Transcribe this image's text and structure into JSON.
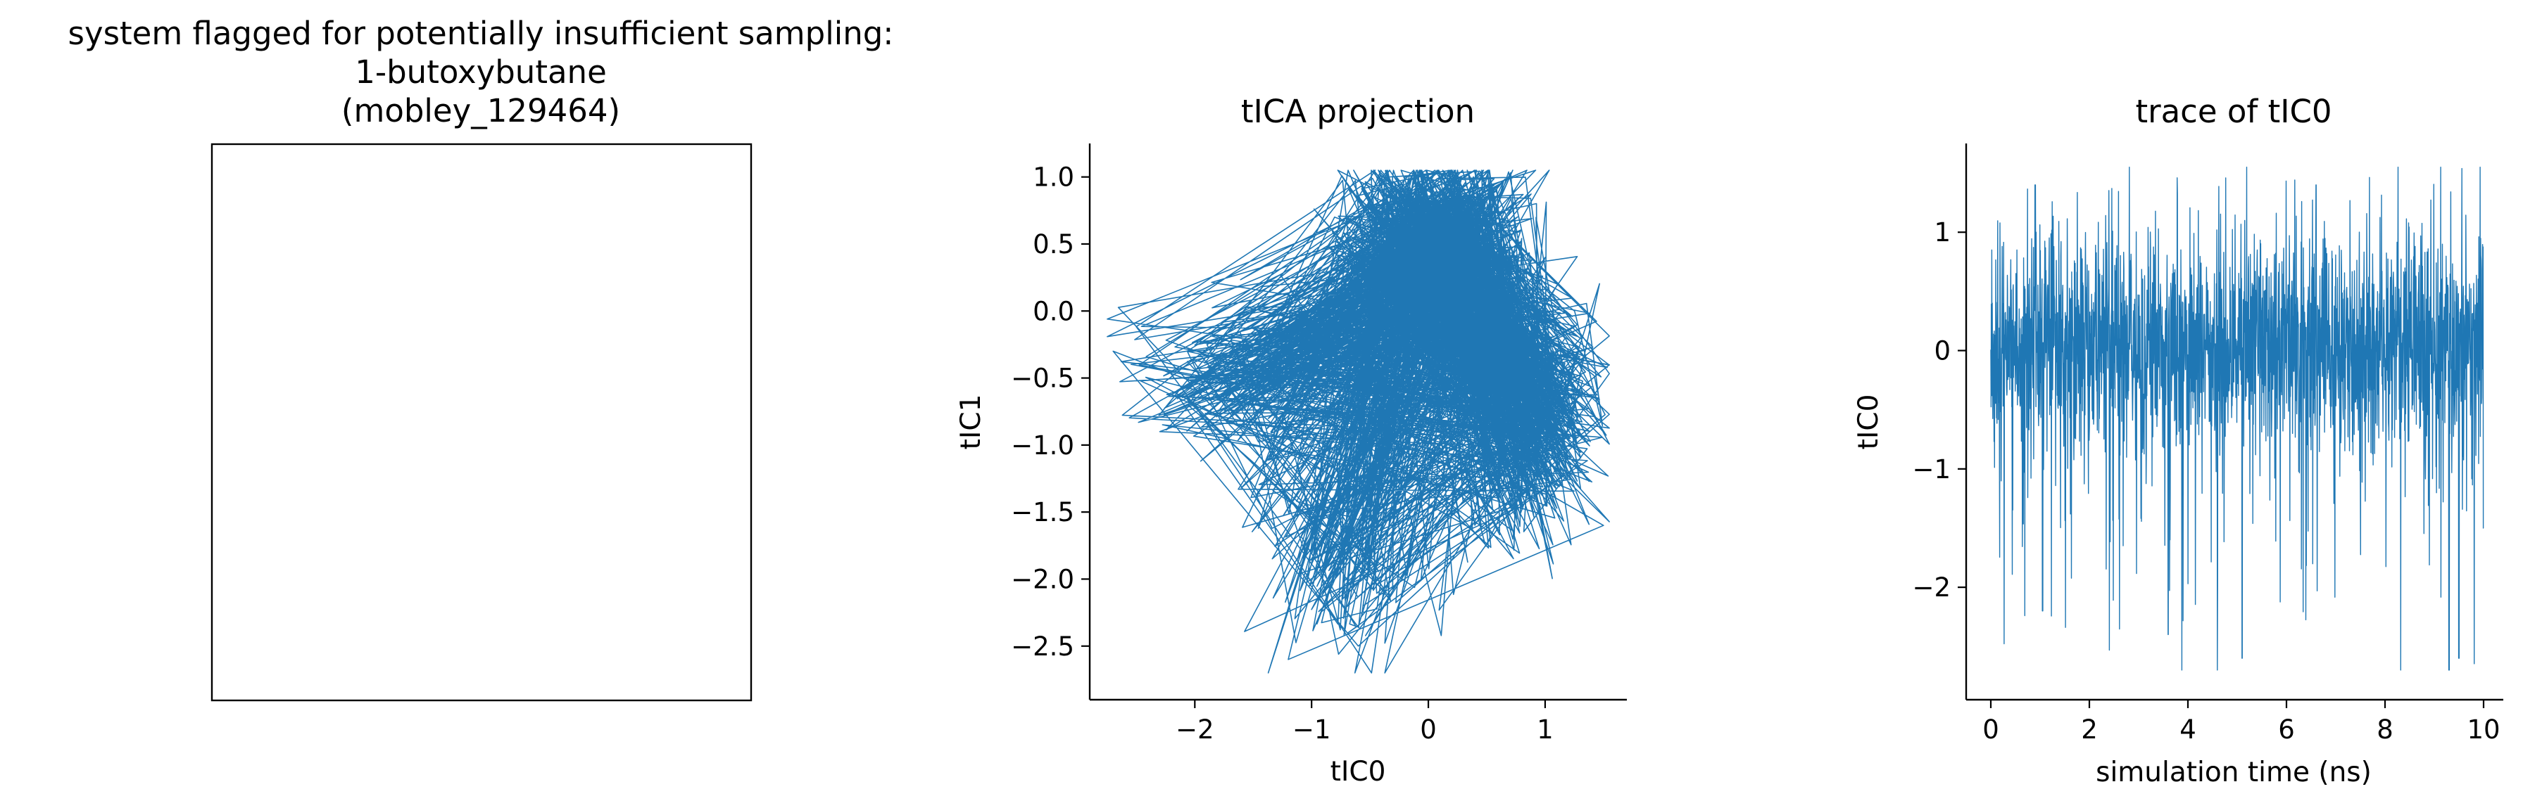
{
  "figure": {
    "suptitle_lines": [
      "system flagged for potentially insufficient sampling:",
      "1-butoxybutane",
      "(mobley_129464)"
    ]
  },
  "colors": {
    "series": "#1f77b4",
    "axes": "#000000"
  },
  "chart_data": [
    {
      "type": "image-panel",
      "title": "",
      "content": "empty"
    },
    {
      "type": "line",
      "title": "tICA projection",
      "xlabel": "tIC0",
      "ylabel": "tIC1",
      "xlim": [
        -2.9,
        1.7
      ],
      "ylim": [
        -2.9,
        1.25
      ],
      "xticks": [
        -2,
        -1,
        0,
        1
      ],
      "xtick_labels": [
        "−2",
        "−1",
        "0",
        "1"
      ],
      "yticks": [
        1.0,
        0.5,
        0.0,
        -0.5,
        -1.0,
        -1.5,
        -2.0,
        -2.5
      ],
      "ytick_labels": [
        "1.0",
        "0.5",
        "0.0",
        "−0.5",
        "−1.0",
        "−1.5",
        "−2.0",
        "−2.5"
      ],
      "series": [
        {
          "n_points": 2200,
          "description_points": {
            "x": [
              0.0,
              0.3,
              -0.4,
              0.6,
              -1.8,
              -2.7,
              -0.6,
              0.9,
              1.5,
              -1.2,
              -0.2,
              0.2,
              -0.8,
              1.0,
              0.4,
              -2.3,
              -0.1,
              0.7
            ],
            "y": [
              0.6,
              0.9,
              0.3,
              -0.4,
              -0.6,
              -0.3,
              -2.5,
              -1.3,
              -1.6,
              -2.6,
              1.0,
              1.05,
              -2.0,
              0.4,
              -1.0,
              -0.9,
              -0.2,
              0.2
            ]
          }
        }
      ],
      "grid": false
    },
    {
      "type": "line",
      "title": "trace of tIC0",
      "xlabel": "simulation time (ns)",
      "ylabel": "tIC0",
      "xlim": [
        -0.5,
        10.4
      ],
      "ylim": [
        -2.95,
        1.75
      ],
      "xticks": [
        0,
        2,
        4,
        6,
        8,
        10
      ],
      "xtick_labels": [
        "0",
        "2",
        "4",
        "6",
        "8",
        "10"
      ],
      "yticks": [
        1,
        0,
        -1,
        -2
      ],
      "ytick_labels": [
        "1",
        "0",
        "−1",
        "−2"
      ],
      "series": [
        {
          "n_points": 2000,
          "x_range": [
            0,
            10
          ],
          "y_range": [
            -2.7,
            1.55
          ],
          "notable_extrema": {
            "x": [
              0.9,
              1.05,
              3.6,
              5.1,
              6.6,
              9.3,
              9.5,
              10.0
            ],
            "y": [
              1.4,
              -2.2,
              -2.4,
              -2.6,
              1.4,
              -2.7,
              -2.6,
              -1.5
            ]
          }
        }
      ],
      "grid": false
    }
  ]
}
